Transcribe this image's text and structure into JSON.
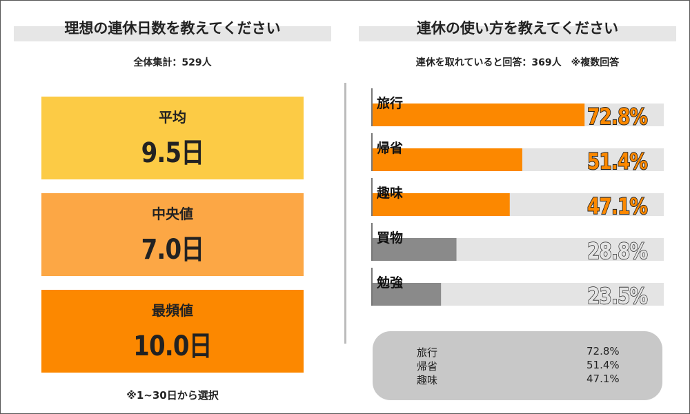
{
  "left_panel": {
    "title": "理想の連休日数を教えてください",
    "total": "全体集計：529人",
    "stats": [
      {
        "label": "平均",
        "value": "9.5日",
        "color": "#fccb45"
      },
      {
        "label": "中央値",
        "value": "7.0日",
        "color": "#fca745"
      },
      {
        "label": "最頻値",
        "value": "10.0日",
        "color": "#fc8800"
      }
    ],
    "note": "※1~30日から選択"
  },
  "right_panel": {
    "title": "連休の使い方を教えてください",
    "subtitle": "連休を取れていると回答：369人　※複数回答",
    "legend": [
      {
        "label": "旅行",
        "value": "72.8%"
      },
      {
        "label": "帰省",
        "value": "51.4%"
      },
      {
        "label": "趣味",
        "value": "47.1%"
      }
    ]
  },
  "colors": {
    "orange": "#fc8800",
    "gray": "#8a8a8a",
    "track": "#e4e4e4",
    "outline": "#222222"
  },
  "chart_data": {
    "type": "bar",
    "orientation": "horizontal",
    "title": "連休の使い方を教えてください",
    "categories": [
      "旅行",
      "帰省",
      "趣味",
      "買物",
      "勉強"
    ],
    "values": [
      72.8,
      51.4,
      47.1,
      28.8,
      23.5
    ],
    "value_labels": [
      "72.8%",
      "51.4%",
      "47.1%",
      "28.8%",
      "23.5%"
    ],
    "highlight": [
      true,
      true,
      true,
      false,
      false
    ],
    "xlim": [
      0,
      100
    ],
    "unit": "%"
  }
}
